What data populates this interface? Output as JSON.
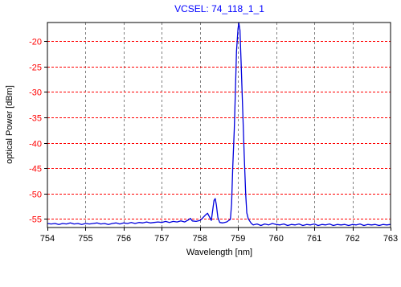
{
  "chart_data": {
    "type": "line",
    "title": "VCSEL: 74_118_1_1",
    "xlabel": "Wavelength [nm]",
    "ylabel": "optical Power [dBm]",
    "xlim": [
      754,
      763
    ],
    "ylim": [
      -56.7,
      -16.3
    ],
    "x_ticks": [
      754,
      755,
      756,
      757,
      758,
      759,
      760,
      761,
      762,
      763
    ],
    "y_ticks": [
      -20,
      -25,
      -30,
      -35,
      -40,
      -45,
      -50,
      -55
    ],
    "grid": true,
    "series": [
      {
        "points": [
          [
            754.0,
            -55.9
          ],
          [
            754.1,
            -56.0
          ],
          [
            754.2,
            -55.9
          ],
          [
            754.3,
            -56.1
          ],
          [
            754.4,
            -55.9
          ],
          [
            754.5,
            -56.0
          ],
          [
            754.6,
            -55.8
          ],
          [
            754.7,
            -56.0
          ],
          [
            754.8,
            -55.9
          ],
          [
            754.9,
            -56.1
          ],
          [
            755.0,
            -55.9
          ],
          [
            755.1,
            -56.0
          ],
          [
            755.2,
            -55.9
          ],
          [
            755.3,
            -55.8
          ],
          [
            755.4,
            -56.0
          ],
          [
            755.5,
            -55.9
          ],
          [
            755.6,
            -56.1
          ],
          [
            755.7,
            -55.9
          ],
          [
            755.8,
            -55.8
          ],
          [
            755.9,
            -56.0
          ],
          [
            756.0,
            -55.8
          ],
          [
            756.1,
            -55.9
          ],
          [
            756.2,
            -55.7
          ],
          [
            756.3,
            -55.9
          ],
          [
            756.4,
            -55.7
          ],
          [
            756.5,
            -55.8
          ],
          [
            756.6,
            -55.6
          ],
          [
            756.7,
            -55.8
          ],
          [
            756.8,
            -55.7
          ],
          [
            756.9,
            -55.6
          ],
          [
            757.0,
            -55.7
          ],
          [
            757.1,
            -55.5
          ],
          [
            757.2,
            -55.7
          ],
          [
            757.3,
            -55.5
          ],
          [
            757.4,
            -55.6
          ],
          [
            757.5,
            -55.4
          ],
          [
            757.6,
            -55.6
          ],
          [
            757.7,
            -55.2
          ],
          [
            757.75,
            -54.9
          ],
          [
            757.8,
            -55.4
          ],
          [
            757.9,
            -55.5
          ],
          [
            758.0,
            -55.3
          ],
          [
            758.05,
            -55.0
          ],
          [
            758.1,
            -54.6
          ],
          [
            758.15,
            -54.2
          ],
          [
            758.2,
            -53.9
          ],
          [
            758.25,
            -54.6
          ],
          [
            758.3,
            -55.3
          ],
          [
            758.33,
            -53.6
          ],
          [
            758.37,
            -51.4
          ],
          [
            758.4,
            -51.0
          ],
          [
            758.43,
            -52.2
          ],
          [
            758.47,
            -54.7
          ],
          [
            758.52,
            -55.7
          ],
          [
            758.6,
            -55.8
          ],
          [
            758.7,
            -55.6
          ],
          [
            758.8,
            -55.1
          ],
          [
            758.83,
            -52.0
          ],
          [
            758.86,
            -45.0
          ],
          [
            758.9,
            -37.5
          ],
          [
            758.93,
            -30.0
          ],
          [
            758.96,
            -22.0
          ],
          [
            759.0,
            -17.5
          ],
          [
            759.02,
            -16.4
          ],
          [
            759.05,
            -17.8
          ],
          [
            759.08,
            -24.0
          ],
          [
            759.12,
            -33.0
          ],
          [
            759.16,
            -42.0
          ],
          [
            759.2,
            -50.0
          ],
          [
            759.23,
            -53.8
          ],
          [
            759.27,
            -55.0
          ],
          [
            759.35,
            -55.9
          ],
          [
            759.4,
            -56.2
          ],
          [
            759.5,
            -56.0
          ],
          [
            759.6,
            -56.3
          ],
          [
            759.7,
            -56.0
          ],
          [
            759.8,
            -56.2
          ],
          [
            759.9,
            -55.9
          ],
          [
            760.0,
            -56.1
          ],
          [
            760.1,
            -56.2
          ],
          [
            760.2,
            -56.0
          ],
          [
            760.3,
            -56.3
          ],
          [
            760.4,
            -56.1
          ],
          [
            760.5,
            -56.2
          ],
          [
            760.6,
            -56.0
          ],
          [
            760.7,
            -56.3
          ],
          [
            760.8,
            -56.1
          ],
          [
            760.9,
            -56.2
          ],
          [
            761.0,
            -56.0
          ],
          [
            761.1,
            -56.3
          ],
          [
            761.2,
            -56.1
          ],
          [
            761.3,
            -56.2
          ],
          [
            761.4,
            -56.0
          ],
          [
            761.5,
            -56.3
          ],
          [
            761.6,
            -56.1
          ],
          [
            761.7,
            -56.2
          ],
          [
            761.8,
            -56.1
          ],
          [
            761.9,
            -56.3
          ],
          [
            762.0,
            -56.1
          ],
          [
            762.1,
            -56.2
          ],
          [
            762.2,
            -56.0
          ],
          [
            762.3,
            -56.3
          ],
          [
            762.4,
            -56.1
          ],
          [
            762.5,
            -56.2
          ],
          [
            762.6,
            -56.1
          ],
          [
            762.7,
            -56.3
          ],
          [
            762.8,
            -56.1
          ],
          [
            762.9,
            -56.2
          ],
          [
            763.0,
            -56.1
          ]
        ]
      }
    ],
    "colors": {
      "line": "#0000dd",
      "title": "#0000ff",
      "y_tick_labels": "#ff0000",
      "grid_horizontal": "#ff0000",
      "grid_vertical": "#808080",
      "axis_frame": "#000000"
    }
  }
}
